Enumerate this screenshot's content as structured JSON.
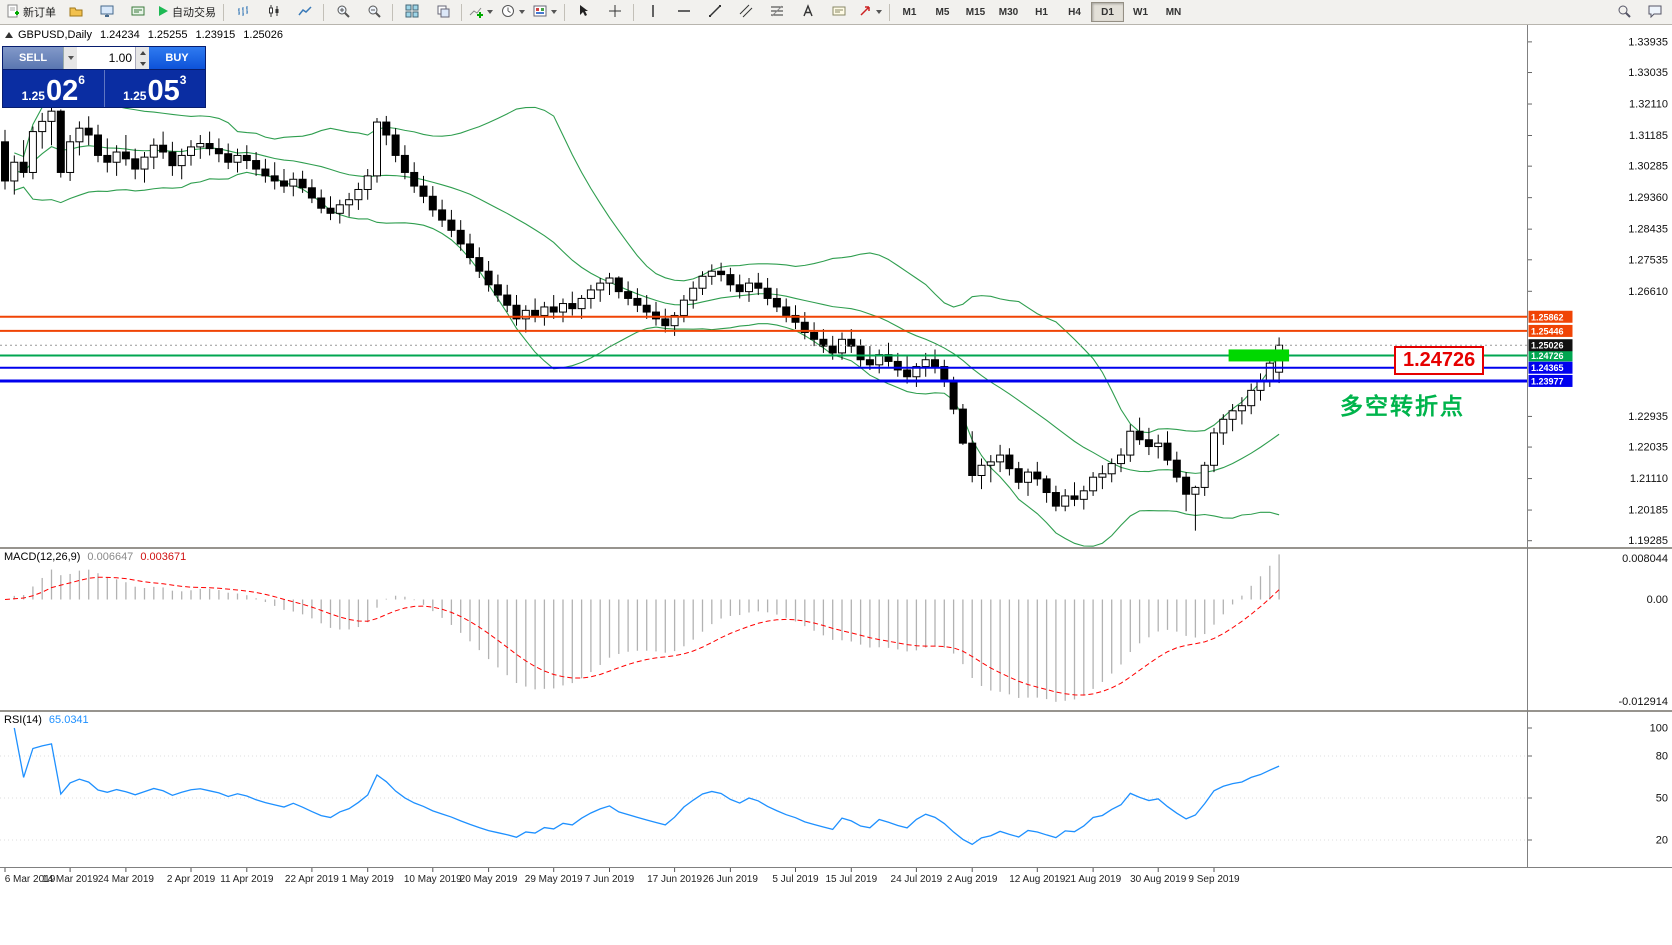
{
  "toolbar": {
    "new_order_label": "新订单",
    "autotrading_label": "自动交易",
    "timeframes": [
      "M1",
      "M5",
      "M15",
      "M30",
      "H1",
      "H4",
      "D1",
      "W1",
      "MN"
    ]
  },
  "chart": {
    "symbol_title": "GBPUSD,Daily",
    "ohlc": {
      "open": "1.24234",
      "high": "1.25255",
      "low": "1.23915",
      "close": "1.25026"
    },
    "one_click": {
      "sell_label": "SELL",
      "buy_label": "BUY",
      "volume": "1.00",
      "bid_small": "1.25",
      "bid_big": "02",
      "bid_sup": "6",
      "ask_small": "1.25",
      "ask_big": "05",
      "ask_sup": "3"
    },
    "annotations": {
      "price_label": "1.24726",
      "turning_point": "多空转折点"
    }
  },
  "indicators": {
    "macd_title": "MACD(12,26,9)",
    "macd_main": "0.006647",
    "macd_signal": "0.003671",
    "rsi_title": "RSI(14)",
    "rsi_value": "65.0341"
  },
  "chart_data": {
    "type": "candlestick",
    "symbol": "GBPUSD",
    "timeframe": "Daily",
    "y_range": [
      1.191,
      1.3446
    ],
    "price_axis_ticks": [
      "1.33935",
      "1.33035",
      "1.32110",
      "1.31185",
      "1.30285",
      "1.29360",
      "1.28435",
      "1.27535",
      "1.26610",
      "1.22935",
      "1.22035",
      "1.21110",
      "1.20185",
      "1.19285"
    ],
    "x_labels": [
      "6 Mar 2019",
      "14 Mar 2019",
      "24 Mar 2019",
      "2 Apr 2019",
      "11 Apr 2019",
      "22 Apr 2019",
      "1 May 2019",
      "10 May 2019",
      "20 May 2019",
      "29 May 2019",
      "7 Jun 2019",
      "17 Jun 2019",
      "26 Jun 2019",
      "5 Jul 2019",
      "15 Jul 2019",
      "24 Jul 2019",
      "2 Aug 2019",
      "12 Aug 2019",
      "21 Aug 2019",
      "30 Aug 2019",
      "9 Sep 2019"
    ],
    "x_label_indices": [
      0,
      7,
      13,
      20,
      26,
      33,
      39,
      46,
      52,
      59,
      65,
      72,
      78,
      85,
      91,
      98,
      104,
      111,
      117,
      124,
      130
    ],
    "candles": [
      [
        1.31,
        1.3135,
        1.296,
        1.2985
      ],
      [
        1.2985,
        1.306,
        1.2945,
        1.304
      ],
      [
        1.304,
        1.3105,
        1.2995,
        1.301
      ],
      [
        1.301,
        1.3145,
        1.299,
        1.313
      ],
      [
        1.313,
        1.3185,
        1.308,
        1.316
      ],
      [
        1.316,
        1.32,
        1.309,
        1.319
      ],
      [
        1.319,
        1.3195,
        1.2995,
        1.301
      ],
      [
        1.301,
        1.312,
        1.2985,
        1.31
      ],
      [
        1.31,
        1.316,
        1.306,
        1.314
      ],
      [
        1.314,
        1.3175,
        1.309,
        1.312
      ],
      [
        1.312,
        1.315,
        1.304,
        1.306
      ],
      [
        1.306,
        1.311,
        1.301,
        1.304
      ],
      [
        1.304,
        1.309,
        1.3,
        1.307
      ],
      [
        1.307,
        1.312,
        1.303,
        1.305
      ],
      [
        1.305,
        1.308,
        1.299,
        1.302
      ],
      [
        1.302,
        1.307,
        1.298,
        1.3055
      ],
      [
        1.3055,
        1.311,
        1.302,
        1.309
      ],
      [
        1.309,
        1.313,
        1.305,
        1.307
      ],
      [
        1.307,
        1.31,
        1.3,
        1.303
      ],
      [
        1.303,
        1.308,
        1.299,
        1.306
      ],
      [
        1.306,
        1.3105,
        1.303,
        1.3085
      ],
      [
        1.3085,
        1.312,
        1.305,
        1.3095
      ],
      [
        1.3095,
        1.313,
        1.306,
        1.308
      ],
      [
        1.308,
        1.311,
        1.304,
        1.3065
      ],
      [
        1.3065,
        1.3095,
        1.302,
        1.304
      ],
      [
        1.304,
        1.308,
        1.301,
        1.306
      ],
      [
        1.306,
        1.309,
        1.302,
        1.3045
      ],
      [
        1.3045,
        1.307,
        1.3,
        1.302
      ],
      [
        1.302,
        1.305,
        1.298,
        1.3
      ],
      [
        1.3,
        1.304,
        1.296,
        1.2985
      ],
      [
        1.2985,
        1.302,
        1.295,
        1.297
      ],
      [
        1.297,
        1.301,
        1.294,
        1.299
      ],
      [
        1.299,
        1.3015,
        1.295,
        1.2965
      ],
      [
        1.2965,
        1.299,
        1.292,
        1.2935
      ],
      [
        1.2935,
        1.296,
        1.289,
        1.2905
      ],
      [
        1.2905,
        1.294,
        1.287,
        1.289
      ],
      [
        1.289,
        1.293,
        1.286,
        1.2915
      ],
      [
        1.2915,
        1.295,
        1.288,
        1.293
      ],
      [
        1.293,
        1.298,
        1.29,
        1.296
      ],
      [
        1.296,
        1.302,
        1.293,
        1.3
      ],
      [
        1.3,
        1.317,
        1.298,
        1.3158
      ],
      [
        1.3158,
        1.3176,
        1.309,
        1.312
      ],
      [
        1.312,
        1.314,
        1.304,
        1.306
      ],
      [
        1.306,
        1.309,
        1.299,
        1.301
      ],
      [
        1.301,
        1.304,
        1.295,
        1.297
      ],
      [
        1.297,
        1.3,
        1.292,
        1.294
      ],
      [
        1.294,
        1.297,
        1.288,
        1.29
      ],
      [
        1.29,
        1.293,
        1.285,
        1.287
      ],
      [
        1.287,
        1.29,
        1.282,
        1.284
      ],
      [
        1.284,
        1.287,
        1.278,
        1.28
      ],
      [
        1.28,
        1.283,
        1.274,
        1.276
      ],
      [
        1.276,
        1.279,
        1.27,
        1.272
      ],
      [
        1.272,
        1.275,
        1.266,
        1.268
      ],
      [
        1.268,
        1.271,
        1.263,
        1.265
      ],
      [
        1.265,
        1.268,
        1.26,
        1.262
      ],
      [
        1.262,
        1.265,
        1.256,
        1.258
      ],
      [
        1.258,
        1.262,
        1.254,
        1.2605
      ],
      [
        1.2605,
        1.264,
        1.257,
        1.259
      ],
      [
        1.259,
        1.263,
        1.256,
        1.2615
      ],
      [
        1.2615,
        1.265,
        1.258,
        1.26
      ],
      [
        1.26,
        1.264,
        1.257,
        1.2625
      ],
      [
        1.2625,
        1.266,
        1.259,
        1.261
      ],
      [
        1.261,
        1.265,
        1.258,
        1.264
      ],
      [
        1.264,
        1.268,
        1.261,
        1.2665
      ],
      [
        1.2665,
        1.27,
        1.263,
        1.2685
      ],
      [
        1.2685,
        1.2715,
        1.265,
        1.27
      ],
      [
        1.27,
        1.2705,
        1.264,
        1.266
      ],
      [
        1.266,
        1.269,
        1.262,
        1.264
      ],
      [
        1.264,
        1.267,
        1.26,
        1.262
      ],
      [
        1.262,
        1.265,
        1.258,
        1.26
      ],
      [
        1.26,
        1.263,
        1.256,
        1.258
      ],
      [
        1.258,
        1.261,
        1.254,
        1.256
      ],
      [
        1.256,
        1.26,
        1.253,
        1.259
      ],
      [
        1.259,
        1.265,
        1.257,
        1.2635
      ],
      [
        1.2635,
        1.269,
        1.261,
        1.267
      ],
      [
        1.267,
        1.272,
        1.265,
        1.2705
      ],
      [
        1.2705,
        1.274,
        1.268,
        1.272
      ],
      [
        1.272,
        1.2745,
        1.269,
        1.271
      ],
      [
        1.271,
        1.273,
        1.266,
        1.268
      ],
      [
        1.268,
        1.271,
        1.264,
        1.266
      ],
      [
        1.266,
        1.27,
        1.263,
        1.2685
      ],
      [
        1.2685,
        1.2715,
        1.265,
        1.267
      ],
      [
        1.267,
        1.27,
        1.262,
        1.264
      ],
      [
        1.264,
        1.267,
        1.26,
        1.2615
      ],
      [
        1.2615,
        1.264,
        1.257,
        1.259
      ],
      [
        1.259,
        1.262,
        1.255,
        1.257
      ],
      [
        1.257,
        1.26,
        1.252,
        1.254
      ],
      [
        1.254,
        1.257,
        1.25,
        1.252
      ],
      [
        1.252,
        1.255,
        1.248,
        1.25
      ],
      [
        1.25,
        1.253,
        1.246,
        1.248
      ],
      [
        1.248,
        1.254,
        1.246,
        1.252
      ],
      [
        1.252,
        1.255,
        1.248,
        1.25
      ],
      [
        1.25,
        1.252,
        1.244,
        1.246
      ],
      [
        1.246,
        1.25,
        1.243,
        1.2445
      ],
      [
        1.2445,
        1.249,
        1.242,
        1.2475
      ],
      [
        1.2475,
        1.251,
        1.244,
        1.2455
      ],
      [
        1.2455,
        1.248,
        1.241,
        1.243
      ],
      [
        1.243,
        1.247,
        1.239,
        1.241
      ],
      [
        1.241,
        1.245,
        1.238,
        1.244
      ],
      [
        1.244,
        1.248,
        1.241,
        1.246
      ],
      [
        1.246,
        1.249,
        1.242,
        1.244
      ],
      [
        1.244,
        1.246,
        1.238,
        1.2395
      ],
      [
        1.2395,
        1.241,
        1.23,
        1.2315
      ],
      [
        1.2315,
        1.233,
        1.221,
        1.2215
      ],
      [
        1.2215,
        1.225,
        1.21,
        1.212
      ],
      [
        1.212,
        1.217,
        1.208,
        1.215
      ],
      [
        1.215,
        1.218,
        1.21,
        1.216
      ],
      [
        1.216,
        1.221,
        1.213,
        1.218
      ],
      [
        1.218,
        1.22,
        1.212,
        1.214
      ],
      [
        1.214,
        1.216,
        1.208,
        1.21
      ],
      [
        1.21,
        1.214,
        1.206,
        1.213
      ],
      [
        1.213,
        1.216,
        1.209,
        1.211
      ],
      [
        1.211,
        1.212,
        1.204,
        1.207
      ],
      [
        1.207,
        1.209,
        1.2015,
        1.203
      ],
      [
        1.203,
        1.208,
        1.2015,
        1.206
      ],
      [
        1.206,
        1.21,
        1.203,
        1.205
      ],
      [
        1.205,
        1.209,
        1.202,
        1.2075
      ],
      [
        1.2075,
        1.213,
        1.206,
        1.2115
      ],
      [
        1.2115,
        1.215,
        1.208,
        1.2125
      ],
      [
        1.2125,
        1.217,
        1.21,
        1.2155
      ],
      [
        1.2155,
        1.22,
        1.213,
        1.218
      ],
      [
        1.218,
        1.227,
        1.216,
        1.225
      ],
      [
        1.225,
        1.229,
        1.221,
        1.2225
      ],
      [
        1.2225,
        1.226,
        1.218,
        1.2205
      ],
      [
        1.2205,
        1.224,
        1.217,
        1.2215
      ],
      [
        1.2215,
        1.225,
        1.215,
        1.2165
      ],
      [
        1.2165,
        1.219,
        1.21,
        1.2115
      ],
      [
        1.2115,
        1.213,
        1.2015,
        1.2065
      ],
      [
        1.2065,
        1.209,
        1.1958,
        1.2085
      ],
      [
        1.2085,
        1.216,
        1.206,
        1.215
      ],
      [
        1.215,
        1.226,
        1.213,
        1.2245
      ],
      [
        1.2245,
        1.23,
        1.221,
        1.2285
      ],
      [
        1.2285,
        1.233,
        1.225,
        1.231
      ],
      [
        1.231,
        1.235,
        1.227,
        1.2325
      ],
      [
        1.2325,
        1.239,
        1.23,
        1.237
      ],
      [
        1.237,
        1.242,
        1.234,
        1.24
      ],
      [
        1.24,
        1.247,
        1.238,
        1.245
      ],
      [
        1.24234,
        1.25255,
        1.23915,
        1.25026
      ]
    ],
    "hlines": [
      {
        "price": 1.25862,
        "label": "1.25862",
        "color": "#f04405",
        "width": 2
      },
      {
        "price": 1.25446,
        "label": "1.25446",
        "color": "#f04405",
        "width": 2
      },
      {
        "price": 1.24726,
        "label": "1.24726",
        "color": "#00a650",
        "width": 2
      },
      {
        "price": 1.24365,
        "label": "1.24365",
        "color": "#0000ee",
        "width": 2
      },
      {
        "price": 1.23977,
        "label": "1.23977",
        "color": "#0000ee",
        "width": 3
      }
    ],
    "current_price": {
      "value": 1.25026,
      "label": "1.25026",
      "color": "#111111"
    },
    "highlight": {
      "price": 1.24726,
      "color": "#00d800"
    },
    "bollinger": {
      "period": 20,
      "deviation": 2,
      "color": "#2f9e4f"
    },
    "macd": {
      "fast": 12,
      "slow": 26,
      "signal": 9,
      "hist_color": "#b2b2b2",
      "signal_color": "#ff0000",
      "axis_ticks": [
        "0.008044",
        "0.00",
        "-0.012914"
      ]
    },
    "rsi": {
      "period": 14,
      "color": "#1e90ff",
      "axis_ticks": [
        "100",
        "80",
        "50",
        "20"
      ],
      "levels": [
        80,
        50,
        20
      ]
    }
  }
}
